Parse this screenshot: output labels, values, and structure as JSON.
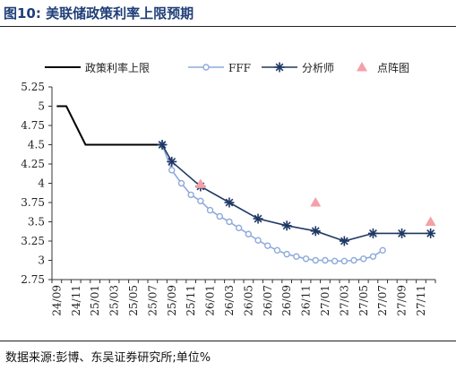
{
  "figure_title": "图10:  美联储政策利率上限预期",
  "source_note": "数据来源:彭博、东吴证券研究所;单位%",
  "chart_data": {
    "type": "line",
    "title": "",
    "xlabel": "",
    "ylabel": "",
    "ylim": [
      2.75,
      5.25
    ],
    "yticks": [
      "5.25",
      "5",
      "4.75",
      "4.5",
      "4.25",
      "4",
      "3.75",
      "3.5",
      "3.25",
      "3",
      "2.75"
    ],
    "xtick_labels": [
      "24/09",
      "24/11",
      "25/01",
      "25/03",
      "25/05",
      "25/07",
      "25/09",
      "25/11",
      "26/01",
      "26/03",
      "26/05",
      "26/07",
      "26/09",
      "26/11",
      "27/01",
      "27/03",
      "27/05",
      "27/07",
      "27/09",
      "27/11"
    ],
    "grid": false,
    "legend_position": "top",
    "series": [
      {
        "name": "政策利率上限",
        "kind": "line",
        "color": "#000000",
        "points": [
          [
            "24/09",
            5.0
          ],
          [
            "24/10",
            5.0
          ],
          [
            "24/11",
            4.75
          ],
          [
            "24/12",
            4.5
          ],
          [
            "25/01",
            4.5
          ],
          [
            "25/02",
            4.5
          ],
          [
            "25/03",
            4.5
          ],
          [
            "25/04",
            4.5
          ],
          [
            "25/05",
            4.5
          ],
          [
            "25/06",
            4.5
          ],
          [
            "25/07",
            4.5
          ],
          [
            "25/08",
            4.5
          ]
        ]
      },
      {
        "name": "FFF",
        "kind": "line-marker-circle",
        "color": "#8eaadb",
        "points": [
          [
            "25/08",
            4.5
          ],
          [
            "25/09",
            4.17
          ],
          [
            "25/10",
            4.0
          ],
          [
            "25/11",
            3.85
          ],
          [
            "25/12",
            3.77
          ],
          [
            "26/01",
            3.65
          ],
          [
            "26/02",
            3.57
          ],
          [
            "26/03",
            3.5
          ],
          [
            "26/04",
            3.42
          ],
          [
            "26/05",
            3.34
          ],
          [
            "26/06",
            3.26
          ],
          [
            "26/07",
            3.19
          ],
          [
            "26/08",
            3.13
          ],
          [
            "26/09",
            3.08
          ],
          [
            "26/10",
            3.05
          ],
          [
            "26/11",
            3.02
          ],
          [
            "26/12",
            3.0
          ],
          [
            "27/01",
            3.0
          ],
          [
            "27/02",
            2.99
          ],
          [
            "27/03",
            2.99
          ],
          [
            "27/04",
            3.0
          ],
          [
            "27/05",
            3.02
          ],
          [
            "27/06",
            3.05
          ],
          [
            "27/07",
            3.13
          ]
        ]
      },
      {
        "name": "分析师",
        "kind": "line-marker-star",
        "color": "#1f3864",
        "points": [
          [
            "25/08",
            4.5
          ],
          [
            "25/09",
            4.28
          ],
          [
            "25/12",
            3.96
          ],
          [
            "26/03",
            3.75
          ],
          [
            "26/06",
            3.54
          ],
          [
            "26/09",
            3.45
          ],
          [
            "26/12",
            3.38
          ],
          [
            "27/03",
            3.25
          ],
          [
            "27/06",
            3.35
          ],
          [
            "27/09",
            3.35
          ],
          [
            "27/12",
            3.35
          ]
        ]
      },
      {
        "name": "点阵图",
        "kind": "scatter-triangle",
        "color": "#f4a0a8",
        "points": [
          [
            "25/12",
            3.99
          ],
          [
            "26/12",
            3.75
          ],
          [
            "27/12",
            3.5
          ]
        ]
      }
    ]
  }
}
